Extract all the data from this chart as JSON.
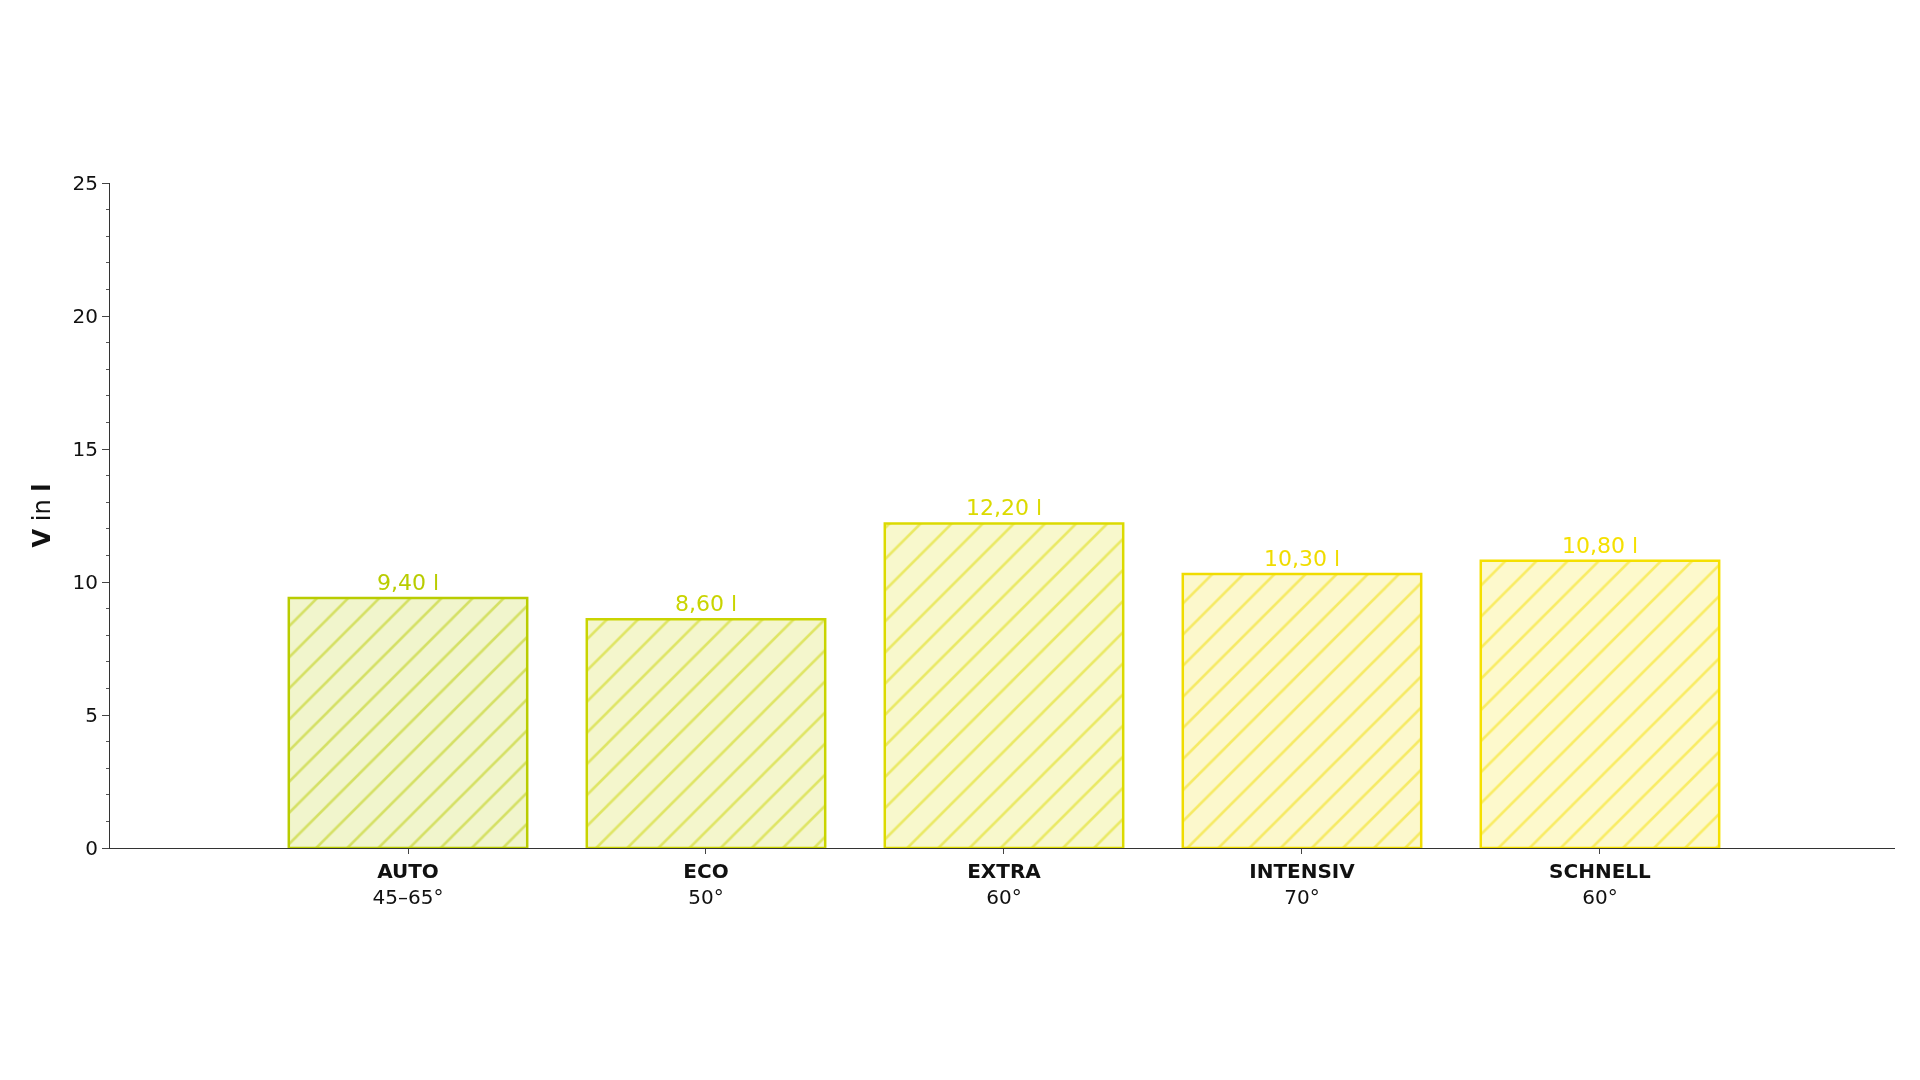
{
  "chart_data": {
    "type": "bar",
    "ylabel": "V in l",
    "categories": [
      "AUTO\n45–65°",
      "ECO\n50°",
      "EXTRA\n60°",
      "INTENSIV\n70°",
      "SCHNELL\n60°"
    ],
    "values": [
      9.4,
      8.6,
      12.2,
      10.3,
      10.8
    ],
    "colors": [
      "#b9cc00",
      "#c9d400",
      "#dcda00",
      "#f0dc00",
      "#f5e000"
    ],
    "value_labels": [
      "9,40 l",
      "8,60 l",
      "12,20 l",
      "10,30 l",
      "10,80 l"
    ],
    "ylim": [
      0,
      25
    ],
    "yticks": [
      0,
      5,
      10,
      15,
      20,
      25
    ]
  }
}
